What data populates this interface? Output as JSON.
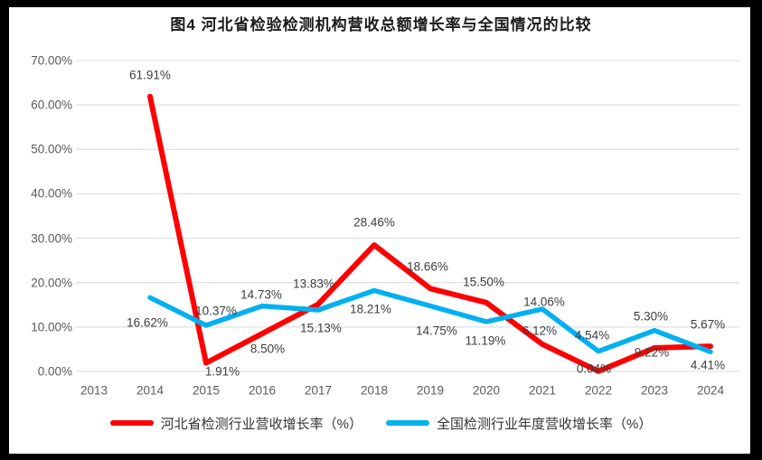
{
  "window": {
    "frame_color": "#000000",
    "background": "#ffffff"
  },
  "chart_data": {
    "type": "line",
    "title": "图4 河北省检验检测机构营收总额增长率与全国情况的比较",
    "categories": [
      "2013",
      "2014",
      "2015",
      "2016",
      "2017",
      "2018",
      "2019",
      "2020",
      "2021",
      "2022",
      "2023",
      "2024"
    ],
    "series": [
      {
        "name": "河北省检测行业营收增长率（%）",
        "color": "#FF0000",
        "values": [
          null,
          61.91,
          1.91,
          8.5,
          15.13,
          28.46,
          18.66,
          15.5,
          6.12,
          0.04,
          5.3,
          5.67
        ],
        "point_labels": [
          null,
          "61.91%",
          "1.91%",
          "8.50%",
          "15.13%",
          "28.46%",
          "18.66%",
          "15.50%",
          "6.12%",
          "0.04%",
          "5.30%",
          "5.67%"
        ],
        "label_offsets": [
          null,
          [
            0,
            -24
          ],
          [
            18,
            9
          ],
          [
            6,
            17
          ],
          [
            3,
            26
          ],
          [
            0,
            -25
          ],
          [
            -3,
            -24
          ],
          [
            -3,
            -23
          ],
          [
            -3,
            -15
          ],
          [
            -5,
            -3
          ],
          [
            -4,
            -35
          ],
          [
            -3,
            -24
          ]
        ]
      },
      {
        "name": "全国检测行业年度营收增长率（%）",
        "color": "#00B0F0",
        "values": [
          null,
          16.62,
          10.37,
          14.73,
          13.83,
          18.21,
          14.75,
          11.19,
          14.06,
          4.54,
          9.22,
          4.41
        ],
        "point_labels": [
          null,
          "16.62%",
          "10.37%",
          "14.73%",
          "13.83%",
          "18.21%",
          "14.75%",
          "11.19%",
          "14.06%",
          "4.54%",
          "9.22%",
          "4.41%"
        ],
        "label_offsets": [
          null,
          [
            -3,
            28
          ],
          [
            11,
            -16
          ],
          [
            -1,
            -13
          ],
          [
            -5,
            -29
          ],
          [
            -4,
            20
          ],
          [
            7,
            27
          ],
          [
            -1,
            21
          ],
          [
            2,
            -8
          ],
          [
            -7,
            -18
          ],
          [
            -3,
            24
          ],
          [
            -3,
            15
          ]
        ]
      }
    ],
    "ylim": [
      0,
      70
    ],
    "ytick_step": 10,
    "ytick_labels": [
      "0.00%",
      "10.00%",
      "20.00%",
      "30.00%",
      "40.00%",
      "50.00%",
      "60.00%",
      "70.00%"
    ],
    "grid": true,
    "grid_color": "#D9D9D9",
    "axis_text_color": "#595959",
    "label_text_color": "#3d3d3d",
    "legend_position": "bottom"
  }
}
